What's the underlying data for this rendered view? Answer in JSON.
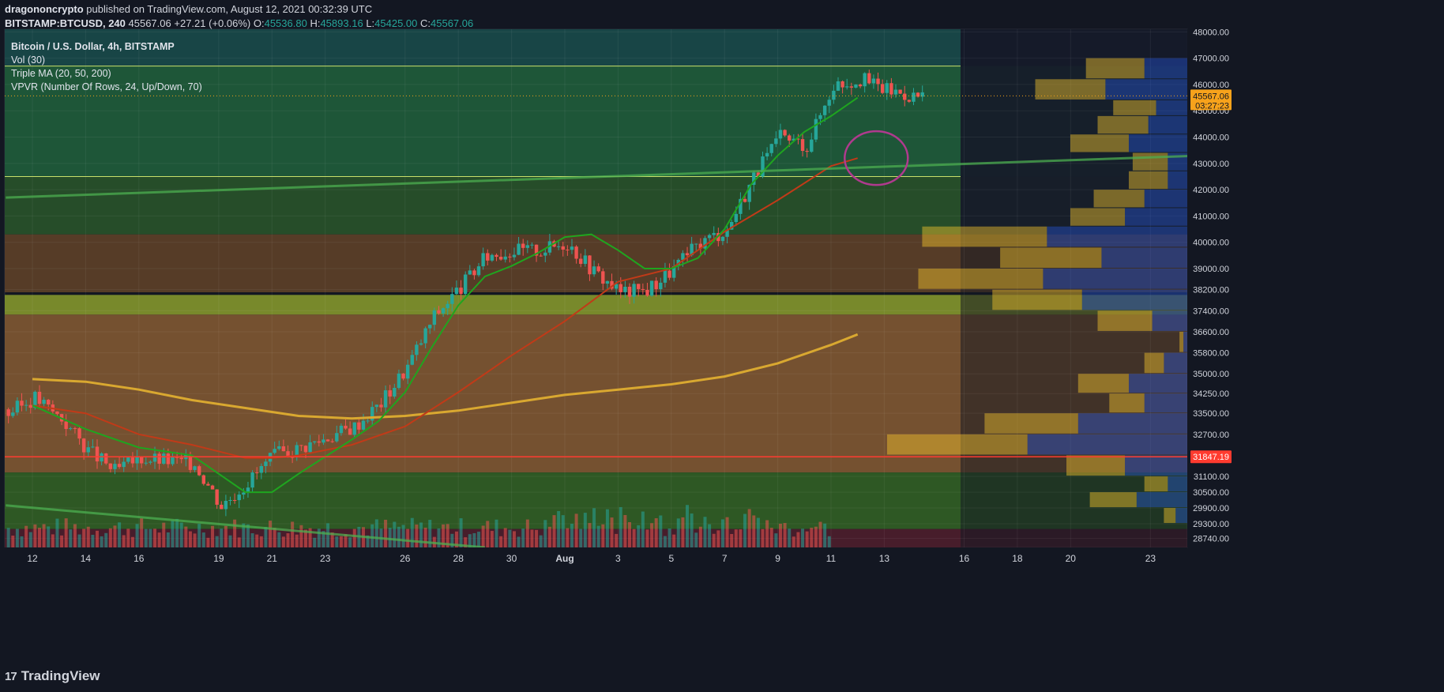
{
  "header": {
    "author": "dragononcrypto",
    "published": "published on TradingView.com, August 12, 2021 00:32:39 UTC",
    "symbol": "BITSTAMP:BTCUSD, 240",
    "last": "45567.06",
    "change": "+27.21 (+0.06%)",
    "o_label": "O:",
    "o": "45536.80",
    "h_label": "H:",
    "h": "45893.16",
    "l_label": "L:",
    "l": "45425.00",
    "c_label": "C:",
    "c": "45567.06"
  },
  "legend": {
    "title": "Bitcoin / U.S. Dollar, 4h, BITSTAMP",
    "vol": "Vol (30)",
    "ma": "Triple MA (20, 50, 200)",
    "vpvr": "VPVR (Number Of Rows, 24, Up/Down, 70)"
  },
  "footer": {
    "brand": "TradingView",
    "logo_glyph": "17"
  },
  "colors": {
    "bg": "#131722",
    "up": "#26a69a",
    "down": "#ef5350",
    "ma20": "#1fa51f",
    "ma50": "#c13a18",
    "ma200": "#d9a830",
    "support_line": "#ff3b2f",
    "price_tag": "#f7a21b",
    "trendline": "#4caf50",
    "circle": "#b03a8e"
  },
  "chart_data": {
    "type": "candlestick",
    "interval": "4h",
    "ylim": [
      28400,
      48100
    ],
    "price_ticks": [
      48000,
      47000,
      46000,
      45000,
      44000,
      43000,
      42000,
      41000,
      40000,
      39000,
      38200,
      37400,
      36600,
      35800,
      35000,
      34250,
      33500,
      32700,
      31100,
      30500,
      29900,
      29300,
      28740
    ],
    "price_tick_labels": [
      "48000.00",
      "47000.00",
      "46000.00",
      "45000.00",
      "44000.00",
      "43000.00",
      "42000.00",
      "41000.00",
      "40000.00",
      "39000.00",
      "38200.00",
      "37400.00",
      "36600.00",
      "35800.00",
      "35000.00",
      "34250.00",
      "33500.00",
      "32700.00",
      "31100.00",
      "30500.00",
      "29900.00",
      "29300.00",
      "28740.00"
    ],
    "x_ticks": [
      "12",
      "14",
      "16",
      "19",
      "21",
      "23",
      "26",
      "28",
      "30",
      "Aug",
      "3",
      "5",
      "7",
      "9",
      "11",
      "13",
      "16",
      "18",
      "20",
      "23"
    ],
    "x_tick_day_index": [
      0,
      2,
      4,
      7,
      9,
      11,
      14,
      16,
      18,
      20,
      22,
      24,
      26,
      28,
      30,
      32,
      35,
      37,
      39,
      42
    ],
    "first_candle_day": -0.9,
    "last_price": 45567.06,
    "last_price_label": "45567.06",
    "countdown": "03:27:23",
    "support_level": 31847.19,
    "support_label": "31847.19",
    "daily_closes": [
      33500,
      34100,
      33300,
      32100,
      31300,
      31800,
      31700,
      31600,
      30000,
      30900,
      31900,
      32200,
      32600,
      33000,
      33900,
      35300,
      37200,
      38300,
      39500,
      39700,
      39700,
      40000,
      38900,
      38100,
      38200,
      39000,
      40000,
      40500,
      42500,
      44000,
      43700,
      46000,
      46200,
      45800,
      45567
    ],
    "zones": [
      {
        "from": 42500,
        "to": 46700,
        "color": "#1f5a3a"
      },
      {
        "from": 40300,
        "to": 42500,
        "color": "#27502a"
      },
      {
        "from": 38100,
        "to": 40300,
        "color": "#5a3e28"
      },
      {
        "from": 37250,
        "to": 38000,
        "color": "#7d8f2c"
      },
      {
        "from": 31250,
        "to": 37250,
        "color": "#7a5431"
      },
      {
        "from": 29100,
        "to": 31250,
        "color": "#2f5c25"
      },
      {
        "from": 28400,
        "to": 29100,
        "color": "#4a1e2c"
      }
    ],
    "vpvr_rows": [
      {
        "price_lo": 46200,
        "price_hi": 47000,
        "up": 1.5,
        "down": 1.1
      },
      {
        "price_lo": 45400,
        "price_hi": 46200,
        "up": 1.8,
        "down": 2.1
      },
      {
        "price_lo": 44800,
        "price_hi": 45400,
        "up": 1.1,
        "down": 0.8
      },
      {
        "price_lo": 44100,
        "price_hi": 44800,
        "up": 1.3,
        "down": 1.0
      },
      {
        "price_lo": 43400,
        "price_hi": 44100,
        "up": 1.5,
        "down": 1.5
      },
      {
        "price_lo": 42700,
        "price_hi": 43400,
        "up": 0.9,
        "down": 0.5
      },
      {
        "price_lo": 42000,
        "price_hi": 42700,
        "up": 1.0,
        "down": 0.5
      },
      {
        "price_lo": 41300,
        "price_hi": 42000,
        "up": 1.3,
        "down": 1.1
      },
      {
        "price_lo": 40600,
        "price_hi": 41300,
        "up": 1.4,
        "down": 1.6
      },
      {
        "price_lo": 39800,
        "price_hi": 40600,
        "up": 3.2,
        "down": 3.6
      },
      {
        "price_lo": 39000,
        "price_hi": 39800,
        "up": 2.6,
        "down": 2.2
      },
      {
        "price_lo": 38200,
        "price_hi": 39000,
        "up": 3.2,
        "down": 3.7
      },
      {
        "price_lo": 37400,
        "price_hi": 38200,
        "up": 2.3,
        "down": 2.7
      },
      {
        "price_lo": 36600,
        "price_hi": 37400,
        "up": 1.4,
        "down": 0.9
      },
      {
        "price_lo": 35800,
        "price_hi": 36600,
        "up": 0.1,
        "down": 0.1
      },
      {
        "price_lo": 35000,
        "price_hi": 35800,
        "up": 0.5,
        "down": 0.6
      },
      {
        "price_lo": 34250,
        "price_hi": 35000,
        "up": 1.3,
        "down": 1.5
      },
      {
        "price_lo": 33500,
        "price_hi": 34250,
        "up": 0.9,
        "down": 1.1
      },
      {
        "price_lo": 32700,
        "price_hi": 33500,
        "up": 2.4,
        "down": 2.8
      },
      {
        "price_lo": 31900,
        "price_hi": 32700,
        "up": 3.6,
        "down": 4.1
      },
      {
        "price_lo": 31100,
        "price_hi": 31900,
        "up": 1.5,
        "down": 1.6
      },
      {
        "price_lo": 30500,
        "price_hi": 31100,
        "up": 0.6,
        "down": 0.5
      },
      {
        "price_lo": 29900,
        "price_hi": 30500,
        "up": 1.2,
        "down": 1.3
      },
      {
        "price_lo": 29300,
        "price_hi": 29900,
        "up": 0.3,
        "down": 0.3
      }
    ],
    "ma20": [
      [
        0,
        33800
      ],
      [
        2,
        32900
      ],
      [
        4,
        32200
      ],
      [
        6,
        31900
      ],
      [
        8,
        30500
      ],
      [
        9,
        30500
      ],
      [
        10,
        31200
      ],
      [
        12,
        32500
      ],
      [
        13,
        33200
      ],
      [
        14,
        34300
      ],
      [
        15,
        36000
      ],
      [
        16,
        37600
      ],
      [
        17,
        38700
      ],
      [
        18,
        39100
      ],
      [
        19,
        39600
      ],
      [
        20,
        40200
      ],
      [
        21,
        40300
      ],
      [
        22,
        39700
      ],
      [
        23,
        39000
      ],
      [
        24,
        39000
      ],
      [
        25,
        39400
      ],
      [
        26,
        40500
      ],
      [
        27,
        42200
      ],
      [
        28,
        43300
      ],
      [
        29,
        44200
      ],
      [
        30,
        44800
      ],
      [
        31,
        45500
      ]
    ],
    "ma50": [
      [
        0,
        33800
      ],
      [
        2,
        33500
      ],
      [
        4,
        32700
      ],
      [
        6,
        32300
      ],
      [
        8,
        31800
      ],
      [
        9,
        31800
      ],
      [
        10,
        31900
      ],
      [
        12,
        32300
      ],
      [
        14,
        33000
      ],
      [
        16,
        34300
      ],
      [
        18,
        35700
      ],
      [
        20,
        37000
      ],
      [
        22,
        38500
      ],
      [
        24,
        39000
      ],
      [
        26,
        40400
      ],
      [
        28,
        41600
      ],
      [
        30,
        42900
      ],
      [
        31,
        43200
      ]
    ],
    "ma200": [
      [
        0,
        34800
      ],
      [
        2,
        34700
      ],
      [
        4,
        34400
      ],
      [
        6,
        34000
      ],
      [
        8,
        33700
      ],
      [
        10,
        33400
      ],
      [
        12,
        33300
      ],
      [
        14,
        33400
      ],
      [
        16,
        33600
      ],
      [
        18,
        33900
      ],
      [
        20,
        34200
      ],
      [
        22,
        34400
      ],
      [
        24,
        34600
      ],
      [
        26,
        34900
      ],
      [
        28,
        35400
      ],
      [
        30,
        36100
      ],
      [
        31,
        36500
      ]
    ],
    "trendlines": [
      {
        "from": [
          -1,
          41700
        ],
        "to": [
          44,
          43300
        ]
      },
      {
        "from": [
          -1,
          30000
        ],
        "to": [
          17,
          28400
        ]
      }
    ],
    "circle_center": [
      31.7,
      43200
    ]
  }
}
